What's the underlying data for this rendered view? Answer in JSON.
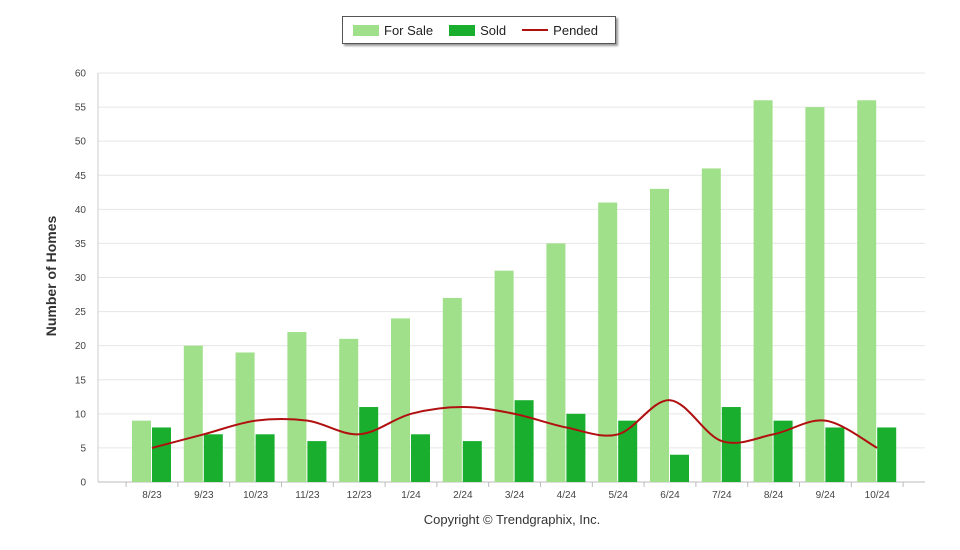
{
  "chart_data": {
    "type": "bar",
    "title": "",
    "xlabel": "",
    "ylabel": "Number of Homes",
    "ylim": [
      0,
      60
    ],
    "yticks": [
      0,
      5,
      10,
      15,
      20,
      25,
      30,
      35,
      40,
      45,
      50,
      55,
      60
    ],
    "grid": true,
    "legend_position": "top-center",
    "categories": [
      "8/23",
      "9/23",
      "10/23",
      "11/23",
      "12/23",
      "1/24",
      "2/24",
      "3/24",
      "4/24",
      "5/24",
      "6/24",
      "7/24",
      "8/24",
      "9/24",
      "10/24"
    ],
    "series": [
      {
        "name": "For Sale",
        "type": "bar",
        "color": "#a0e08a",
        "values": [
          9,
          20,
          19,
          22,
          21,
          24,
          27,
          31,
          35,
          41,
          43,
          46,
          56,
          55,
          56
        ]
      },
      {
        "name": "Sold",
        "type": "bar",
        "color": "#1aae2e",
        "values": [
          8,
          7,
          7,
          6,
          11,
          7,
          6,
          12,
          10,
          9,
          4,
          11,
          9,
          8,
          8
        ]
      },
      {
        "name": "Pended",
        "type": "line",
        "color": "#b01010",
        "values": [
          5,
          7,
          9,
          9,
          7,
          10,
          11,
          10,
          8,
          7,
          12,
          6,
          7,
          9,
          5
        ]
      }
    ]
  },
  "copyright": "Copyright © Trendgraphix, Inc."
}
